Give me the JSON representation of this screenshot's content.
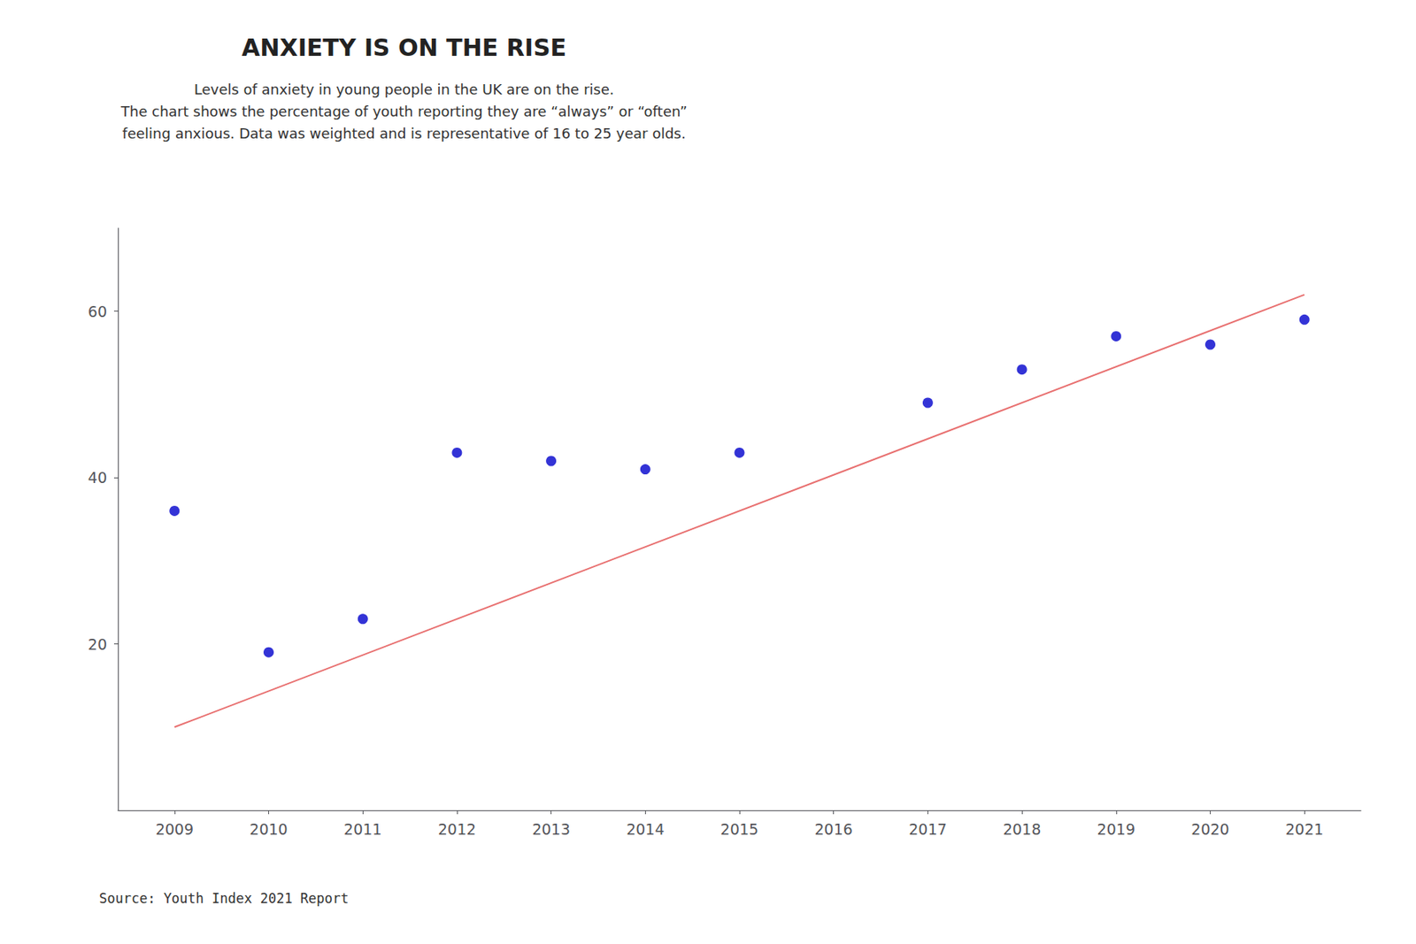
{
  "chart_data": {
    "type": "scatter",
    "title": "ANXIETY IS ON THE RISE",
    "subtitle": "Levels of anxiety in young people in the UK are on the rise.\nThe chart shows the percentage of youth reporting they are “always” or “often”\nfeeling anxious. Data was weighted and is representative of 16 to 25 year olds.",
    "annotations": [
      "Source: Youth Index 2021 Report"
    ],
    "series": [
      {
        "type": "line",
        "color": "#E87070",
        "x": [
          2009,
          2021
        ],
        "values": [
          10,
          62
        ]
      },
      {
        "type": "scatter",
        "color": "#0000CC",
        "x": [
          2009,
          2010,
          2011,
          2012,
          2013,
          2014,
          2015,
          2016,
          2017,
          2018,
          2019,
          2020,
          2021
        ],
        "values": [
          36,
          19,
          23,
          43,
          42,
          41,
          43,
          null,
          49,
          53,
          57,
          56,
          59
        ]
      }
    ],
    "xlim": [
      2008.4,
      2021.6
    ],
    "xticks": [
      2009,
      2010,
      2011,
      2012,
      2013,
      2014,
      2015,
      2016,
      2017,
      2018,
      2019,
      2020,
      2021
    ],
    "ylim": [
      0,
      70
    ],
    "yticks": [
      20,
      40,
      60
    ],
    "grid": false
  }
}
